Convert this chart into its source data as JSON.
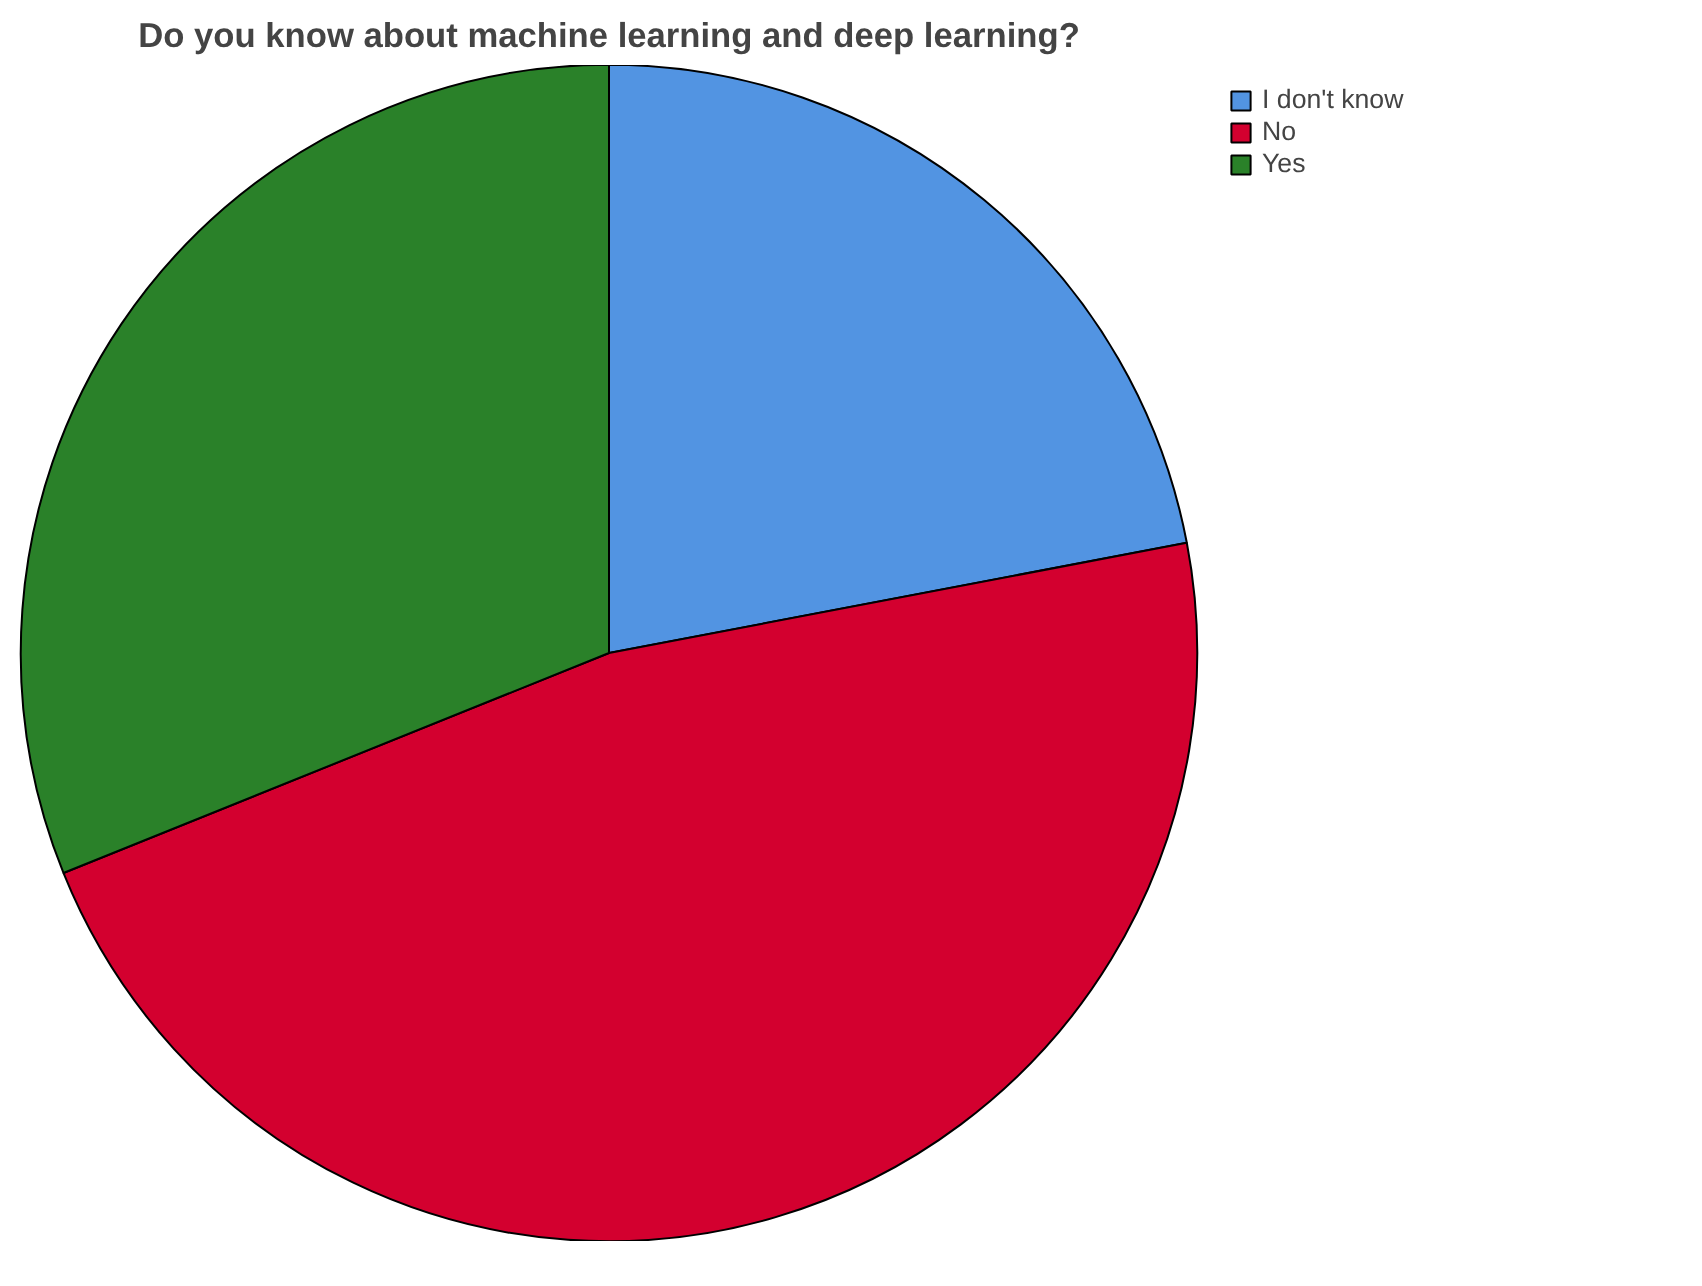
{
  "chart_data": {
    "type": "pie",
    "title": "Do you know about machine learning and deep learning?",
    "categories": [
      "I don't know",
      "No",
      "Yes"
    ],
    "values": [
      22,
      46.9,
      31.1
    ],
    "colors": [
      "#5294e2",
      "#d3002f",
      "#2a8129"
    ],
    "legend": "top right"
  }
}
